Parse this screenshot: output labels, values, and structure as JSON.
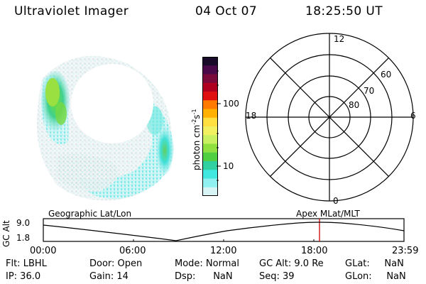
{
  "header": {
    "title": "Ultraviolet Imager",
    "date": "04 Oct 07",
    "time": "18:25:50 UT"
  },
  "colorbar": {
    "label": "photon cm",
    "label_exp1": "-2",
    "label_s": "s",
    "label_exp2": "-1",
    "tick_100": "100",
    "tick_10": "10",
    "colors_top_to_bottom": [
      "#1a0a2a",
      "#4a0a4a",
      "#7a0a3a",
      "#b00020",
      "#e01010",
      "#ff7a00",
      "#ffb000",
      "#ffe040",
      "#f0f060",
      "#c8f060",
      "#90e040",
      "#50d040",
      "#30d0a0",
      "#40e8e0",
      "#90f0f0",
      "#d8f4f4"
    ]
  },
  "polar": {
    "label_12": "12",
    "label_6": "6",
    "label_18": "18",
    "label_0": "0",
    "lat_60": "60",
    "lat_70": "70",
    "lat_80": "80"
  },
  "timeline": {
    "ylabel": "GC Alt",
    "ymax": "9.0",
    "ymin": "1.8",
    "left_label": "Geographic Lat/Lon",
    "right_label": "Apex MLat/MLT",
    "ticks": [
      "00:00",
      "06:00",
      "12:00",
      "18:00",
      "23:59"
    ],
    "marker_color": "#cc0000"
  },
  "status": {
    "flt": "Flt: LBHL",
    "ip": "IP: 36.0",
    "door": "Door: Open",
    "gain": "Gain: 14",
    "mode": "Mode: Normal",
    "dsp": "Dsp:      NaN",
    "gcalt": "GC Alt: 9.0 Re",
    "seq": "Seq: 39",
    "glat": "GLat:     NaN",
    "glon": "GLon:     NaN"
  }
}
